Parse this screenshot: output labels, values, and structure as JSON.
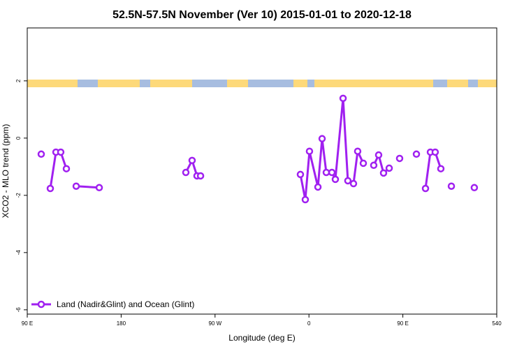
{
  "chart_data": {
    "type": "line",
    "title": "52.5N-57.5N November (Ver 10)   2015-01-01 to 2020-12-18",
    "x_label": "Longitude (deg E)",
    "y_label": "XCO2 - MLO trend (ppm)",
    "xlim": [
      90,
      540
    ],
    "xticks": [
      {
        "value": 90,
        "label": "90 E"
      },
      180,
      {
        "value": 270,
        "label": "90 W"
      },
      {
        "value": 360,
        "label": "0"
      },
      {
        "value": 450,
        "label": "90 E"
      },
      540
    ],
    "ylim": [
      -6.15,
      3.85
    ],
    "yticks": [
      -6,
      -4,
      -2,
      0,
      2
    ],
    "legend": "bottomleft",
    "series": [
      {
        "name": "Land (Nadir&Glint) and Ocean (Glint)",
        "color": "#a020f0",
        "x": [
          103.4,
          null,
          112.1,
          117.5,
          122.1,
          127.5,
          null,
          136.9,
          159.0,
          null,
          242.0,
          248.0,
          252.7,
          256.1,
          null,
          351.8,
          356.5,
          360.5,
          368.6,
          372.6,
          376.6,
          382.0,
          385.3,
          392.7,
          397.3,
          402.7,
          406.7,
          412.1,
          null,
          422.1,
          426.8,
          431.5,
          436.9,
          null,
          446.9,
          null,
          463.0,
          null,
          471.7,
          476.4,
          481.0,
          486.4,
          null,
          496.5,
          null,
          518.5
        ],
        "values": [
          -0.56,
          null,
          -1.76,
          -0.49,
          -0.49,
          -1.07,
          null,
          -1.68,
          -1.73,
          null,
          -1.2,
          -0.78,
          -1.32,
          -1.32,
          null,
          -1.27,
          -2.15,
          -0.46,
          -1.71,
          -0.02,
          -1.2,
          -1.2,
          -1.44,
          1.39,
          -1.49,
          -1.59,
          -0.46,
          -0.88,
          null,
          -0.95,
          -0.59,
          -1.22,
          -1.05,
          null,
          -0.71,
          null,
          -0.56,
          null,
          -1.76,
          -0.49,
          -0.49,
          -1.07,
          null,
          -1.68,
          null,
          -1.73
        ]
      }
    ]
  }
}
